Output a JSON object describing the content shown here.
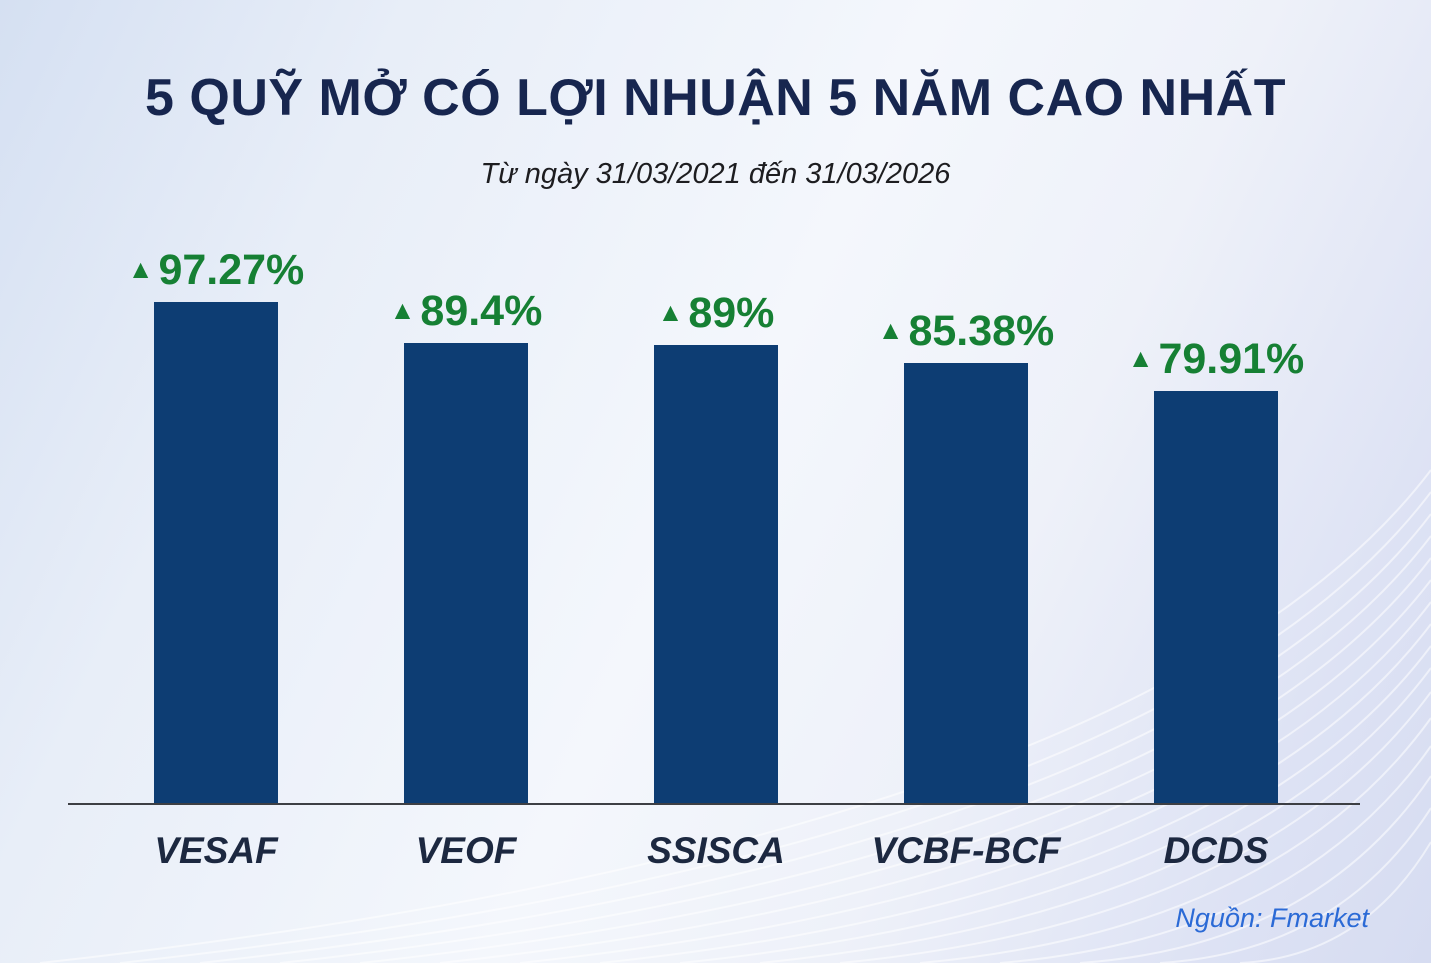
{
  "title": "5 QUỸ MỞ CÓ LỢI NHUẬN 5 NĂM CAO NHẤT",
  "subtitle": "Từ ngày 31/03/2021 đến 31/03/2026",
  "source": "Nguồn: Fmarket",
  "colors": {
    "bar": "#0d3d73",
    "value_label_green": "#168034",
    "title_navy": "#17264f",
    "category_navy": "#1c2840",
    "source_blue": "#2b6ad6",
    "background_light_blue": "#e8eef8"
  },
  "chart_data": {
    "type": "bar",
    "title": "5 QUỸ MỞ CÓ LỢI NHUẬN 5 NĂM CAO NHẤT",
    "subtitle": "Từ ngày 31/03/2021 đến 31/03/2026",
    "categories": [
      "VESAF",
      "VEOF",
      "SSISCA",
      "VCBF-BCF",
      "DCDS"
    ],
    "values": [
      97.27,
      89.4,
      89,
      85.38,
      79.91
    ],
    "value_labels": [
      "97.27%",
      "89.4%",
      "89%",
      "85.38%",
      "79.91%"
    ],
    "marker_glyph": "▲",
    "xlabel": "",
    "ylabel": "",
    "ylim": [
      0,
      100
    ],
    "grid": false,
    "legend_position": "none",
    "source": "Nguồn: Fmarket"
  }
}
